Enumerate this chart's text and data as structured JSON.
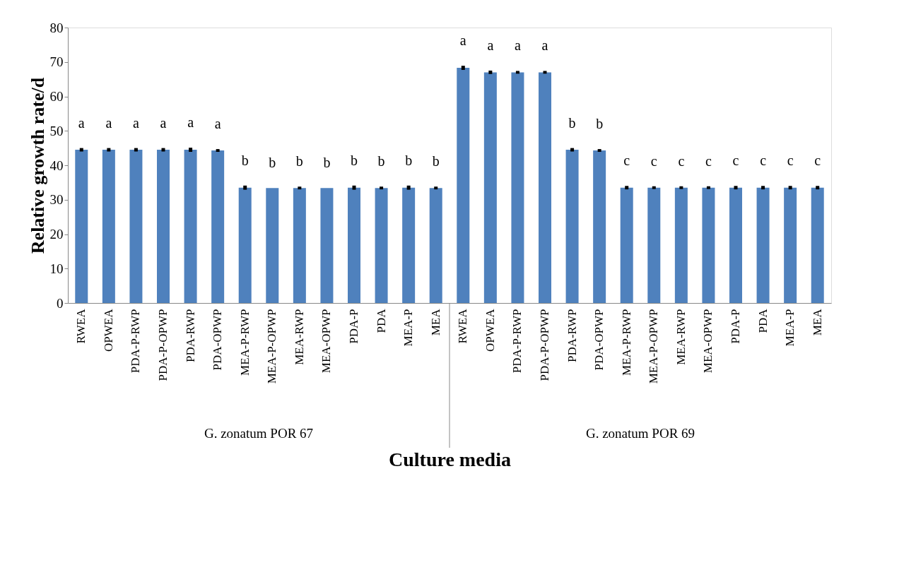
{
  "chart_data": {
    "type": "bar",
    "xlabel": "Culture media",
    "ylabel": "Relative growth rate/d",
    "categories": [
      "RWEA",
      "OPWEA",
      "PDA-P-RWP",
      "PDA-P-OPWP",
      "PDA-RWP",
      "PDA-OPWP",
      "MEA-P-RWP",
      "MEA-P-OPWP",
      "MEA-RWP",
      "MEA-OPWP",
      "PDA-P",
      "PDA",
      "MEA-P",
      "MEA",
      "RWEA",
      "OPWEA",
      "PDA-P-RWP",
      "PDA-P-OPWP",
      "PDA-RWP",
      "PDA-OPWP",
      "MEA-P-RWP",
      "MEA-P-OPWP",
      "MEA-RWP",
      "MEA-OPWP",
      "PDA-P",
      "PDA",
      "MEA-P",
      "MEA"
    ],
    "values": [
      44.5,
      44.5,
      44.5,
      44.5,
      44.5,
      44.3,
      33.5,
      33.4,
      33.4,
      33.4,
      33.5,
      33.4,
      33.5,
      33.4,
      68.3,
      67.0,
      67.0,
      67.0,
      44.5,
      44.3,
      33.5,
      33.5,
      33.5,
      33.5,
      33.5,
      33.5,
      33.5,
      33.5
    ],
    "errors": [
      0.5,
      0.5,
      0.5,
      0.5,
      0.6,
      0.4,
      0.6,
      null,
      0.4,
      null,
      0.6,
      0.4,
      0.6,
      0.4,
      0.6,
      0.5,
      0.4,
      0.4,
      0.5,
      0.4,
      0.5,
      0.4,
      0.4,
      0.4,
      0.5,
      0.5,
      0.5,
      0.5
    ],
    "value_labels": [
      "a",
      "a",
      "a",
      "a",
      "a",
      "a",
      "b",
      "b",
      "b",
      "b",
      "b",
      "b",
      "b",
      "b",
      "a",
      "a",
      "a",
      "a",
      "b",
      "b",
      "c",
      "c",
      "c",
      "c",
      "c",
      "c",
      "c",
      "c"
    ],
    "color": "#4f81bd",
    "ylim": [
      0,
      80
    ],
    "yticks": [
      0,
      10,
      20,
      30,
      40,
      50,
      60,
      70,
      80
    ],
    "grid": false,
    "legend": false,
    "annotations": [
      "G. zonatum POR 67",
      "G. zonatum POR 69"
    ]
  }
}
